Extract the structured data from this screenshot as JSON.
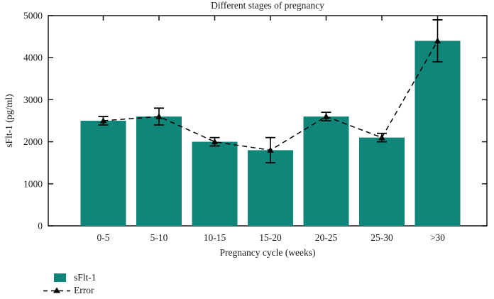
{
  "title": "Different stages of pregnancy",
  "chart_data": {
    "type": "bar",
    "title": "Different stages of pregnancy",
    "xlabel": "Pregnancy cycle (weeks)",
    "ylabel": "sFlt-1 (pg/ml)",
    "categories": [
      "0-5",
      "5-10",
      "10-15",
      "15-20",
      "20-25",
      "25-30",
      ">30"
    ],
    "series": [
      {
        "name": "sFlt-1",
        "type": "bar",
        "values": [
          2500,
          2600,
          2000,
          1800,
          2600,
          2100,
          4400
        ]
      },
      {
        "name": "Error",
        "type": "error-bar",
        "upper": [
          2600,
          2800,
          2100,
          2100,
          2700,
          2200,
          4900
        ],
        "lower": [
          2400,
          2400,
          1900,
          1500,
          2500,
          2000,
          3900
        ]
      }
    ],
    "ylim": [
      0,
      5000
    ],
    "yticks": [
      0,
      1000,
      2000,
      3000,
      4000,
      5000
    ],
    "grid": false,
    "frame": true,
    "bar_color": "#0f8679",
    "error_color": "#000000",
    "axis_color": "#1a1a1a",
    "legend_position": "bottom-left",
    "legend": [
      {
        "label": "sFlt-1",
        "swatch": "bar-square"
      },
      {
        "label": "Error",
        "swatch": "dash-triangle"
      }
    ]
  }
}
